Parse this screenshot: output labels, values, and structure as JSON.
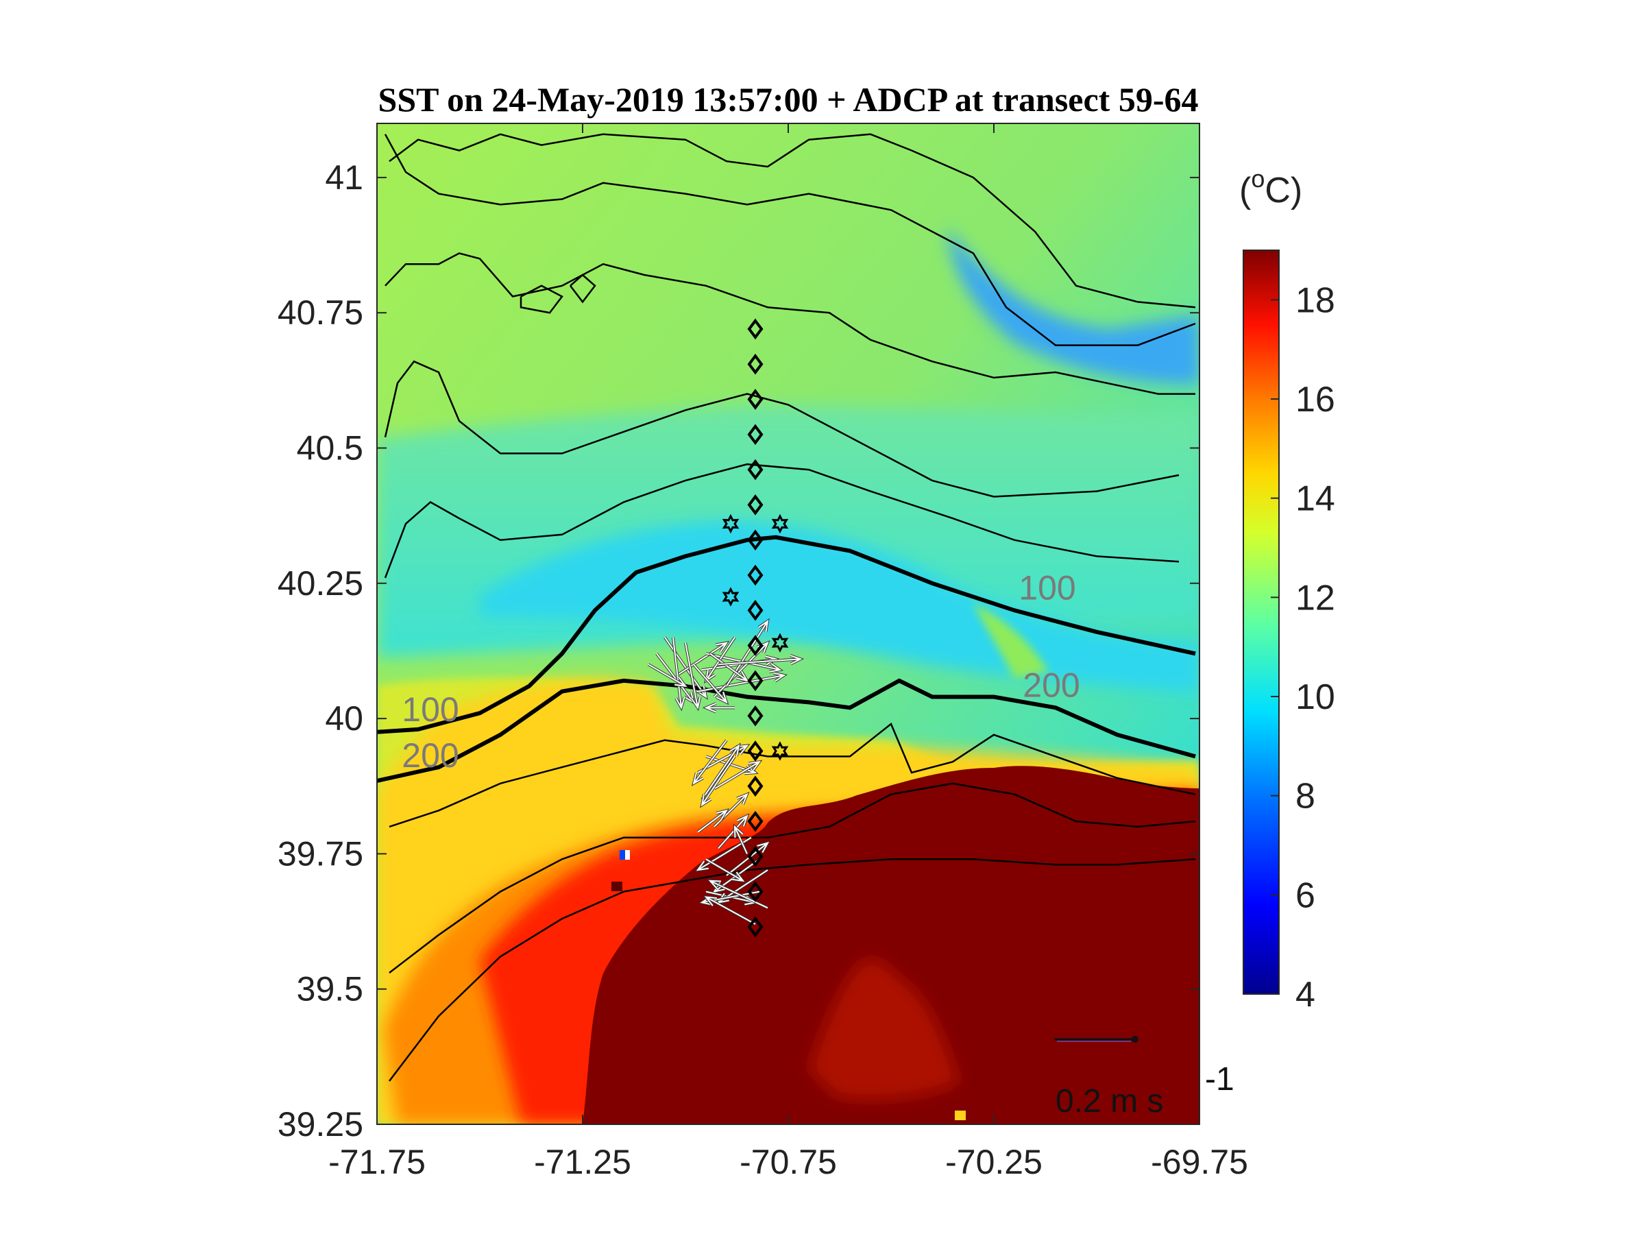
{
  "title": "SST on 24-May-2019 13:57:00 + ADCP at transect 59-64",
  "axes": {
    "x_ticks": [
      "-71.75",
      "-71.25",
      "-70.75",
      "-70.25",
      "-69.75"
    ],
    "y_ticks": [
      "39.25",
      "39.5",
      "39.75",
      "40",
      "40.25",
      "40.5",
      "40.75",
      "41"
    ],
    "xlim": [
      -71.75,
      -69.75
    ],
    "ylim": [
      39.25,
      41.1
    ]
  },
  "colorbar": {
    "unit_base": "(",
    "unit_sup": "o",
    "unit_rest": "C)",
    "ticks": [
      "4",
      "6",
      "8",
      "10",
      "12",
      "14",
      "16",
      "18"
    ],
    "range": [
      4,
      19
    ],
    "colormap": "jet"
  },
  "isobaths": [
    {
      "depth": "100",
      "labels_at": [
        [
          -71.62,
          39.995
        ],
        [
          -70.12,
          40.22
        ]
      ]
    },
    {
      "depth": "200",
      "labels_at": [
        [
          -71.62,
          39.91
        ],
        [
          -70.11,
          40.04
        ]
      ]
    }
  ],
  "stations": {
    "diamond_lon": -70.83,
    "diamond_lats": [
      40.72,
      40.655,
      40.59,
      40.525,
      40.46,
      40.395,
      40.33,
      40.265,
      40.2,
      40.135,
      40.07,
      40.005,
      39.94,
      39.875,
      39.81,
      39.745,
      39.68,
      39.615
    ],
    "stars": [
      [
        -70.89,
        40.36
      ],
      [
        -70.77,
        40.36
      ],
      [
        -70.89,
        40.225
      ],
      [
        -70.77,
        40.14
      ],
      [
        -70.77,
        39.94
      ]
    ]
  },
  "scale_arrow": {
    "label": "0.2 m s",
    "label_sup": "-1",
    "value_ms": 0.2
  },
  "colors": {
    "contour": "#000000",
    "isolabel": "#7a7a7a",
    "vector": "#ffffff",
    "vector_edge": "#333333"
  }
}
